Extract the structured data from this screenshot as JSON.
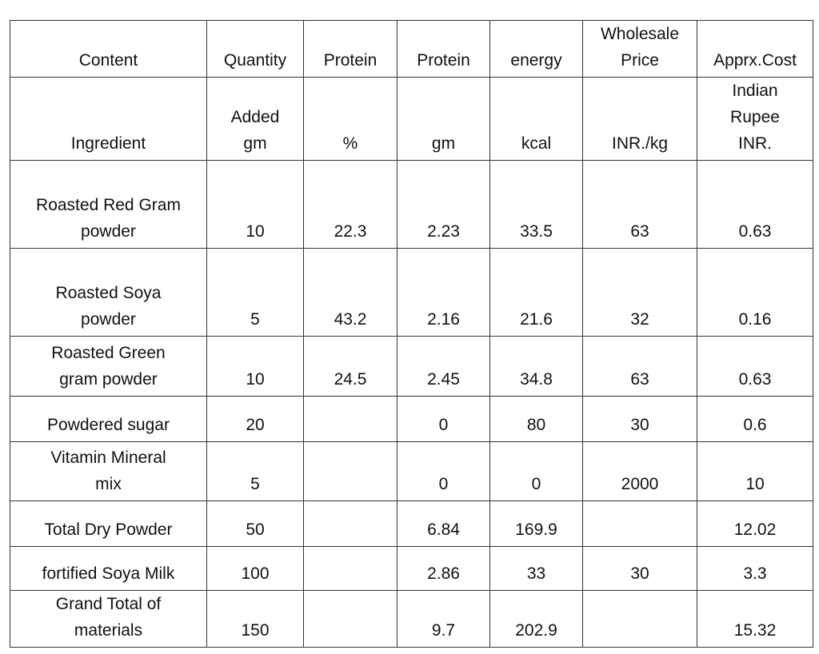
{
  "header_rows": [
    [
      "Content",
      "Quantity",
      "Protein",
      "Protein",
      "energy",
      "Wholesale\nPrice",
      "Apprx.Cost"
    ],
    [
      "Ingredient",
      "Added\ngm",
      "%",
      "gm",
      "kcal",
      "INR./kg",
      "Indian\nRupee\nINR."
    ]
  ],
  "rows": [
    [
      "Roasted Red Gram\npowder",
      "10",
      "22.3",
      "2.23",
      "33.5",
      "63",
      "0.63"
    ],
    [
      "Roasted Soya\npowder",
      "5",
      "43.2",
      "2.16",
      "21.6",
      "32",
      "0.16"
    ],
    [
      "Roasted Green\ngram powder",
      "10",
      "24.5",
      "2.45",
      "34.8",
      "63",
      "0.63"
    ],
    [
      "Powdered sugar",
      "20",
      "",
      "0",
      "80",
      "30",
      "0.6"
    ],
    [
      "Vitamin Mineral\nmix",
      "5",
      "",
      "0",
      "0",
      "2000",
      "10"
    ],
    [
      "Total Dry Powder",
      "50",
      "",
      "6.84",
      "169.9",
      "",
      "12.02"
    ],
    [
      "fortified Soya Milk",
      "100",
      "",
      "2.86",
      "33",
      "30",
      "3.3"
    ],
    [
      "Grand Total  of\nmaterials",
      "150",
      "",
      "9.7",
      "202.9",
      "",
      "15.32"
    ]
  ]
}
